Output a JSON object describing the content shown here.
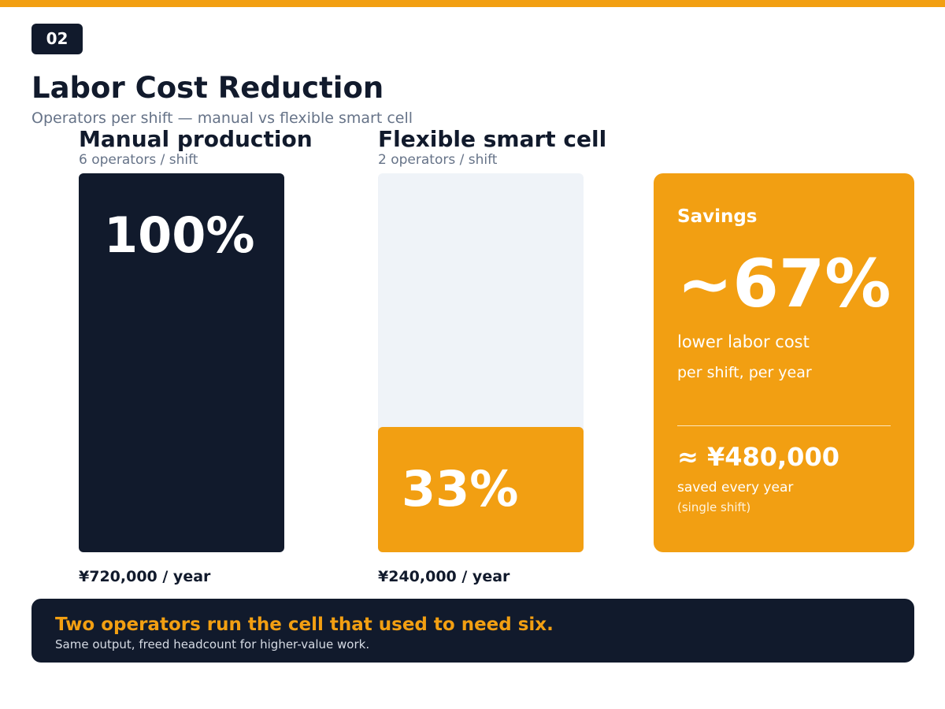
{
  "slide_number": "02",
  "title": "Labor Cost Reduction",
  "subtitle": "Operators per shift — manual vs flexible smart cell",
  "colors": {
    "accent": "#f29f12",
    "dark": "#111a2c",
    "muted": "#667388",
    "track": "#eff3f8"
  },
  "comparison": {
    "manual": {
      "label": "Manual production",
      "operators": "6 operators / shift",
      "share_text": "100%",
      "share": 1.0,
      "cost": "¥720,000 / year"
    },
    "smart_cell": {
      "label": "Flexible smart cell",
      "operators": "2 operators / shift",
      "share_text": "33%",
      "share": 0.33,
      "cost": "¥240,000 / year"
    }
  },
  "savings": {
    "title": "Savings",
    "percent": "~67%",
    "line1": "lower labor cost",
    "line2": "per shift, per year",
    "amount": "≈ ¥480,000",
    "note1": "saved every year",
    "note2": "(single shift)"
  },
  "banner": {
    "headline": "Two operators run the cell that used to need six.",
    "subline": "Same output, freed headcount for higher-value work."
  }
}
